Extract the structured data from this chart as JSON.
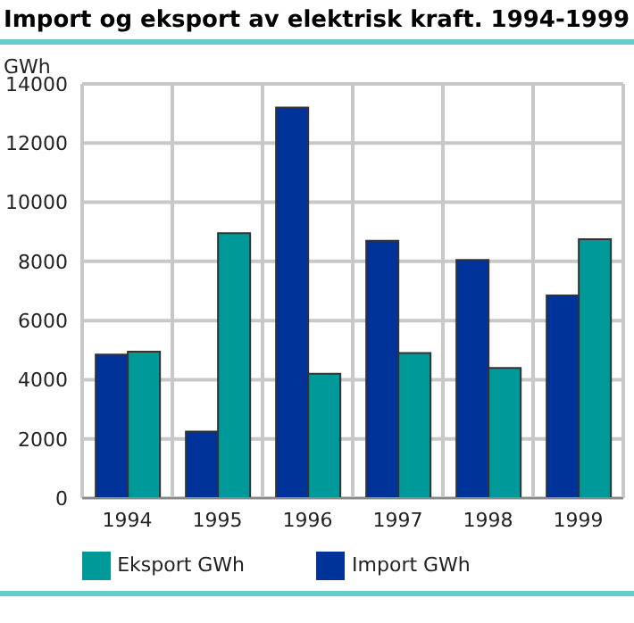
{
  "chart_data": {
    "type": "bar",
    "title": "Import og eksport av elektrisk kraft. 1994-1999",
    "ylabel": "GWh",
    "categories": [
      "1994",
      "1995",
      "1996",
      "1997",
      "1998",
      "1999"
    ],
    "series": [
      {
        "name": "Import GWh",
        "color": "#003399",
        "values": [
          4850,
          2250,
          13200,
          8700,
          8050,
          6850
        ]
      },
      {
        "name": "Eksport GWh",
        "color": "#009999",
        "values": [
          4950,
          8950,
          4200,
          4900,
          4400,
          8750
        ]
      }
    ],
    "ylim": [
      0,
      14000
    ],
    "yticks": [
      0,
      2000,
      4000,
      6000,
      8000,
      10000,
      12000,
      14000
    ],
    "grid": true,
    "legend": "bottom"
  }
}
